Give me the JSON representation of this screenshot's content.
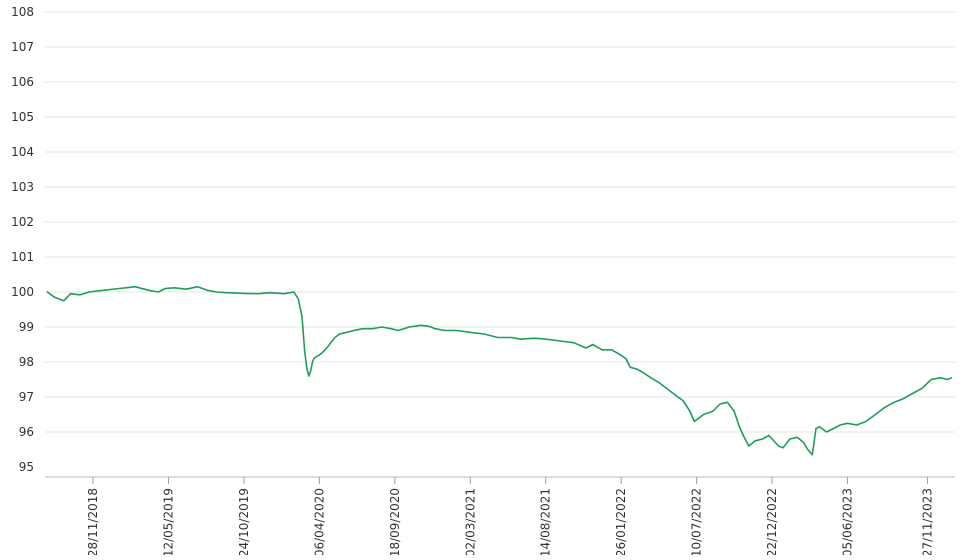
{
  "chart_data": {
    "type": "line",
    "title": "",
    "xlabel": "",
    "ylabel": "",
    "ylim": [
      95,
      108
    ],
    "y_ticks": [
      "95",
      "96",
      "97",
      "98",
      "99",
      "100",
      "101",
      "102",
      "103",
      "104",
      "105",
      "106",
      "107",
      "108"
    ],
    "x_range": [
      "2018-08-15",
      "2024-01-26"
    ],
    "x_tick_labels": [
      "28/11/2018",
      "12/05/2019",
      "24/10/2019",
      "06/04/2020",
      "18/09/2020",
      "02/03/2021",
      "14/08/2021",
      "26/01/2022",
      "10/07/2022",
      "22/12/2022",
      "05/06/2023",
      "27/11/2023"
    ],
    "x_tick_dates": [
      "2018-11-28",
      "2019-05-12",
      "2019-10-24",
      "2020-04-06",
      "2020-09-18",
      "2021-03-02",
      "2021-08-14",
      "2022-01-26",
      "2022-07-10",
      "2022-12-22",
      "2023-06-05",
      "2023-11-27"
    ],
    "grid": "horizontal",
    "legend": "none",
    "line_color": "#1e9e5a",
    "series": [
      {
        "x": [
          "2018-08-20",
          "2018-09-05",
          "2018-09-25",
          "2018-10-10",
          "2018-10-30",
          "2018-11-20",
          "2018-12-20",
          "2019-01-25",
          "2019-02-28",
          "2019-03-30",
          "2019-04-20",
          "2019-05-05",
          "2019-05-25",
          "2019-06-20",
          "2019-07-15",
          "2019-08-05",
          "2019-08-25",
          "2019-09-15",
          "2019-10-05",
          "2019-10-25",
          "2019-11-25",
          "2019-12-20",
          "2020-01-20",
          "2020-02-10",
          "2020-02-20",
          "2020-02-28",
          "2020-03-05",
          "2020-03-10",
          "2020-03-14",
          "2020-03-18",
          "2020-03-22",
          "2020-03-25",
          "2020-03-30",
          "2020-04-06",
          "2020-04-15",
          "2020-04-25",
          "2020-05-10",
          "2020-05-20",
          "2020-06-05",
          "2020-06-20",
          "2020-07-10",
          "2020-08-01",
          "2020-08-20",
          "2020-09-10",
          "2020-09-25",
          "2020-10-20",
          "2020-11-15",
          "2020-12-01",
          "2020-12-15",
          "2021-01-05",
          "2021-02-01",
          "2021-03-01",
          "2021-04-01",
          "2021-05-01",
          "2021-06-01",
          "2021-06-20",
          "2021-07-20",
          "2021-08-15",
          "2021-09-15",
          "2021-10-15",
          "2021-11-10",
          "2021-11-25",
          "2021-12-15",
          "2022-01-05",
          "2022-01-25",
          "2022-02-05",
          "2022-02-15",
          "2022-03-01",
          "2022-03-15",
          "2022-04-01",
          "2022-04-20",
          "2022-05-10",
          "2022-05-25",
          "2022-06-10",
          "2022-06-25",
          "2022-07-05",
          "2022-07-15",
          "2022-07-25",
          "2022-08-05",
          "2022-08-15",
          "2022-08-30",
          "2022-09-15",
          "2022-09-30",
          "2022-10-10",
          "2022-10-20",
          "2022-11-01",
          "2022-11-15",
          "2022-12-01",
          "2022-12-15",
          "2023-01-05",
          "2023-01-15",
          "2023-01-30",
          "2023-02-15",
          "2023-03-01",
          "2023-03-10",
          "2023-03-20",
          "2023-03-28",
          "2023-04-05",
          "2023-04-20",
          "2023-05-05",
          "2023-05-20",
          "2023-06-05",
          "2023-06-25",
          "2023-07-15",
          "2023-08-05",
          "2023-08-25",
          "2023-09-15",
          "2023-10-05",
          "2023-10-25",
          "2023-11-15",
          "2023-12-05",
          "2023-12-25",
          "2024-01-10",
          "2024-01-18"
        ],
        "values": [
          100.0,
          99.85,
          99.75,
          99.95,
          99.92,
          100.0,
          100.05,
          100.1,
          100.15,
          100.05,
          100.0,
          100.1,
          100.12,
          100.08,
          100.15,
          100.05,
          100.0,
          99.98,
          99.97,
          99.96,
          99.95,
          99.98,
          99.95,
          100.0,
          99.8,
          99.3,
          98.3,
          97.8,
          97.6,
          97.75,
          98.0,
          98.1,
          98.15,
          98.2,
          98.3,
          98.45,
          98.7,
          98.8,
          98.85,
          98.9,
          98.95,
          98.95,
          99.0,
          98.95,
          98.9,
          99.0,
          99.05,
          99.02,
          98.95,
          98.9,
          98.9,
          98.85,
          98.8,
          98.7,
          98.7,
          98.65,
          98.68,
          98.65,
          98.6,
          98.55,
          98.4,
          98.5,
          98.35,
          98.35,
          98.2,
          98.1,
          97.85,
          97.8,
          97.7,
          97.55,
          97.4,
          97.2,
          97.05,
          96.9,
          96.6,
          96.3,
          96.4,
          96.5,
          96.55,
          96.6,
          96.8,
          96.85,
          96.6,
          96.2,
          95.9,
          95.6,
          95.75,
          95.8,
          95.9,
          95.6,
          95.55,
          95.8,
          95.85,
          95.7,
          95.5,
          95.35,
          96.1,
          96.15,
          96.0,
          96.1,
          96.2,
          96.25,
          96.2,
          96.3,
          96.5,
          96.7,
          96.85,
          96.95,
          97.1,
          97.25,
          97.5,
          97.55,
          97.5,
          97.55
        ]
      }
    ]
  }
}
